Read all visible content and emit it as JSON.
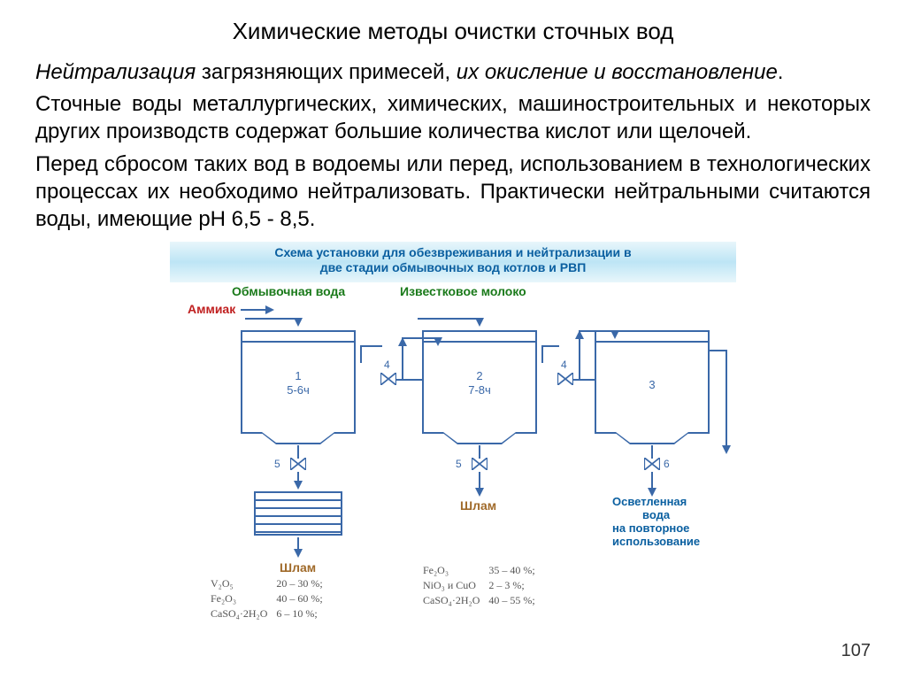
{
  "title": "Химические методы очистки сточных вод",
  "para1_italic": "Нейтрализация",
  "para1_rest": " загрязняющих примесей, ",
  "para1_italic2": "их окисление и восстановление",
  "para1_end": ".",
  "para2": "Сточные воды металлургических, химических, машиностроительных и некоторых других производств содержат большие количества кислот или щелочей.",
  "para3": "Перед сбросом таких вод в водоемы или перед, использованием в технологических процессах их необходимо нейтрализовать. Практически нейтральными считаются воды, имеющие рН 6,5 - 8,5.",
  "page_number": "107",
  "diagram": {
    "header_line1": "Схема установки для обезвреживания и нейтрализации в",
    "header_line2": "две стадии обмывочных вод котлов и РВП",
    "label_wash_water": "Обмывочная вода",
    "label_ammonia": "Аммиак",
    "label_lime_milk": "Известковое молоко",
    "tank1_num": "1",
    "tank1_time": "5-6ч",
    "tank2_num": "2",
    "tank2_time": "7-8ч",
    "tank3_num": "3",
    "valve_num_4": "4",
    "bottom_num_5": "5",
    "bottom_num_6": "6",
    "sludge_label": "Шлам",
    "clarified_line1": "Осветленная",
    "clarified_line2": "вода",
    "clarified_line3": "на повторное",
    "clarified_line4": "использование",
    "chem_left": [
      [
        "V₂O₅",
        "20 – 30 %;"
      ],
      [
        "Fe₂O₃",
        "40 – 60 %;"
      ],
      [
        "CaSO₄·2H₂O",
        "6 – 10 %;"
      ]
    ],
    "chem_right": [
      [
        "Fe₂O₃",
        "35 – 40 %;"
      ],
      [
        "NiO₃ и CuO",
        "2 – 3 %;"
      ],
      [
        "CaSO₄·2H₂O",
        "40 – 55 %;"
      ]
    ],
    "colors": {
      "header_text": "#0a5fa0",
      "line": "#3a68a8",
      "wash_water": "#1a7a1a",
      "ammonia": "#c02020",
      "lime_milk": "#1a7a1a",
      "sludge": "#a06a2a",
      "clarified": "#0a5fa0"
    }
  }
}
